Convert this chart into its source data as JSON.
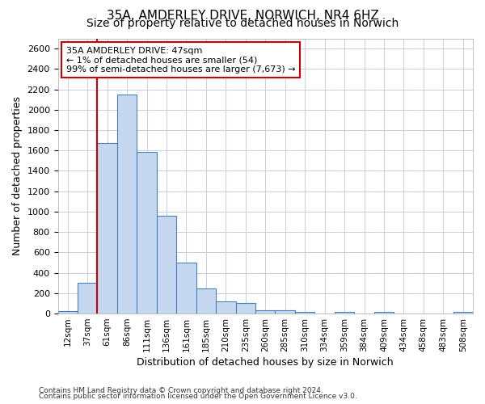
{
  "title_line1": "35A, AMDERLEY DRIVE, NORWICH, NR4 6HZ",
  "title_line2": "Size of property relative to detached houses in Norwich",
  "xlabel": "Distribution of detached houses by size in Norwich",
  "ylabel": "Number of detached properties",
  "categories": [
    "12sqm",
    "37sqm",
    "61sqm",
    "86sqm",
    "111sqm",
    "136sqm",
    "161sqm",
    "185sqm",
    "210sqm",
    "235sqm",
    "260sqm",
    "285sqm",
    "310sqm",
    "334sqm",
    "359sqm",
    "384sqm",
    "409sqm",
    "434sqm",
    "458sqm",
    "483sqm",
    "508sqm"
  ],
  "values": [
    25,
    300,
    1670,
    2150,
    1590,
    960,
    500,
    248,
    120,
    100,
    35,
    35,
    20,
    0,
    20,
    0,
    20,
    0,
    0,
    0,
    20
  ],
  "bar_color": "#c5d8f0",
  "bar_edge_color": "#4a7fb5",
  "grid_color": "#c8d0e0",
  "vline_color": "#cc0000",
  "vline_x": 1.5,
  "annotation_text": "35A AMDERLEY DRIVE: 47sqm\n← 1% of detached houses are smaller (54)\n99% of semi-detached houses are larger (7,673) →",
  "annotation_box_color": "#ffffff",
  "annotation_box_edge_color": "#cc0000",
  "ylim": [
    0,
    2700
  ],
  "yticks": [
    0,
    200,
    400,
    600,
    800,
    1000,
    1200,
    1400,
    1600,
    1800,
    2000,
    2200,
    2400,
    2600
  ],
  "footer_line1": "Contains HM Land Registry data © Crown copyright and database right 2024.",
  "footer_line2": "Contains public sector information licensed under the Open Government Licence v3.0.",
  "bg_color": "#ffffff",
  "title1_fontsize": 11,
  "title2_fontsize": 10,
  "ylabel_fontsize": 9,
  "xlabel_fontsize": 9,
  "tick_fontsize": 8,
  "xtick_fontsize": 7.5,
  "footer_fontsize": 6.5,
  "annot_fontsize": 8
}
